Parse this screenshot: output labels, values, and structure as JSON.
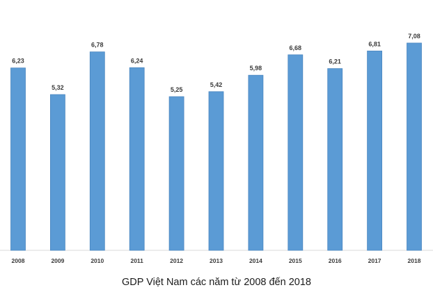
{
  "caption": "GDP Việt Nam các năm từ 2008 đến 2018",
  "chart_data": {
    "type": "bar",
    "title": "GDP Việt Nam các năm từ 2008 đến 2018",
    "categories": [
      "2008",
      "2009",
      "2010",
      "2011",
      "2012",
      "2013",
      "2014",
      "2015",
      "2016",
      "2017",
      "2018"
    ],
    "values": [
      6.23,
      5.32,
      6.78,
      6.24,
      5.25,
      5.42,
      5.98,
      6.68,
      6.21,
      6.81,
      7.08
    ],
    "value_labels": [
      "6,23",
      "5,32",
      "6,78",
      "6,24",
      "5,25",
      "5,42",
      "5,98",
      "6,68",
      "6,21",
      "6,81",
      "7,08"
    ],
    "ylim": [
      0,
      7.5
    ],
    "grid": false,
    "legend": "none",
    "bar_color": "#5b9bd5",
    "bar_edge_color": "#4a86c0"
  }
}
